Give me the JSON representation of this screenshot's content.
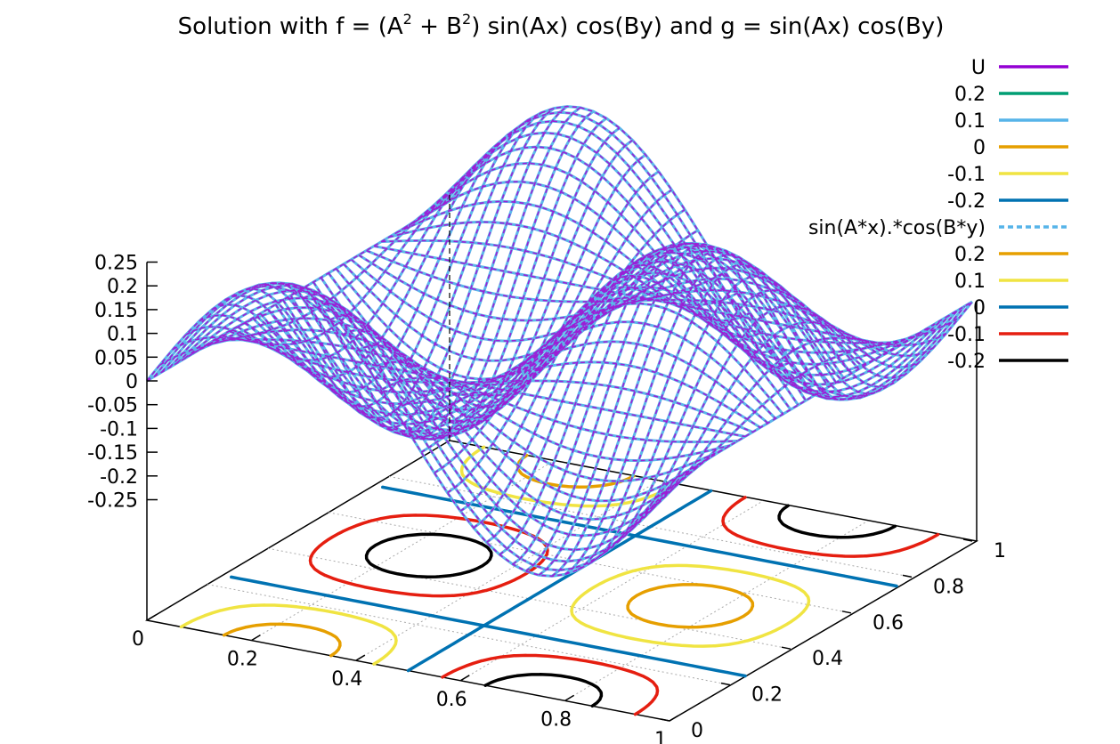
{
  "chart_data": {
    "type": "surface3d",
    "title": {
      "prefix": "Solution with f = (A",
      "sup1": "2",
      "mid": " + B",
      "sup2": "2",
      "suffix": ") sin(Ax) cos(By) and g = sin(Ax) cos(By)"
    },
    "surface": {
      "formula": "0.25*sin(2*pi*x)*cos(2*pi*y)",
      "x_range": [
        0,
        1
      ],
      "y_range": [
        0,
        1
      ],
      "z_range": [
        -0.25,
        0.25
      ]
    },
    "z_ticks": [
      "0.25",
      "0.2",
      "0.15",
      "0.1",
      "0.05",
      "0",
      "-0.05",
      "-0.1",
      "-0.15",
      "-0.2",
      "-0.25"
    ],
    "x_ticks": [
      "0",
      "0.2",
      "0.4",
      "0.6",
      "0.8",
      "1"
    ],
    "y_ticks": [
      "0",
      "0.2",
      "0.4",
      "0.6",
      "0.8",
      "1"
    ],
    "grid": true,
    "legend": [
      {
        "label": "U",
        "color": "#9400d3",
        "dashed": false
      },
      {
        "label": "0.2",
        "color": "#009e73",
        "dashed": false
      },
      {
        "label": "0.1",
        "color": "#56b4e9",
        "dashed": false
      },
      {
        "label": "0",
        "color": "#e69f00",
        "dashed": false
      },
      {
        "label": "-0.1",
        "color": "#f0e442",
        "dashed": false
      },
      {
        "label": "-0.2",
        "color": "#0072b2",
        "dashed": false
      },
      {
        "label": "sin(A*x).*cos(B*y)",
        "color": "#56b4e9",
        "dashed": true
      },
      {
        "label": "0.2",
        "color": "#e69f00",
        "dashed": false
      },
      {
        "label": "0.1",
        "color": "#f0e442",
        "dashed": false
      },
      {
        "label": "0",
        "color": "#0072b2",
        "dashed": false
      },
      {
        "label": "-0.1",
        "color": "#e51e10",
        "dashed": false
      },
      {
        "label": "-0.2",
        "color": "#000000",
        "dashed": false
      }
    ],
    "contours": [
      {
        "level": 0.2,
        "color": "#e69f00"
      },
      {
        "level": 0.1,
        "color": "#f0e442"
      },
      {
        "level": 0,
        "color": "#0072b2"
      },
      {
        "level": -0.1,
        "color": "#e51e10"
      },
      {
        "level": -0.2,
        "color": "#000000"
      }
    ]
  }
}
